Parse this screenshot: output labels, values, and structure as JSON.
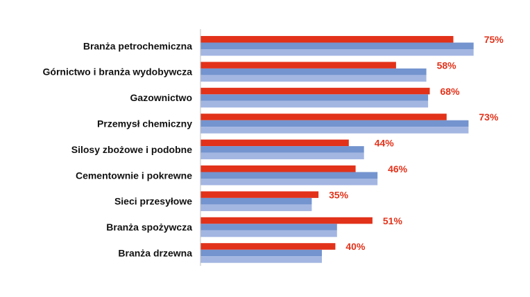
{
  "chart_data": {
    "type": "bar",
    "orientation": "horizontal",
    "categories": [
      "Branża petrochemiczna",
      "Górnictwo i branża wydobywcza",
      "Gazownictwo",
      "Przemysł chemiczny",
      "Silosy zbożowe i podobne",
      "Cementownie i pokrewne",
      "Sieci przesyłowe",
      "Branża spożywcza",
      "Branża drzewna"
    ],
    "series": [
      {
        "values": [
          75,
          58,
          68,
          73,
          44,
          46,
          35,
          51,
          40
        ],
        "color": "#e2321a"
      },
      {
        "values": [
          81,
          67,
          67.5,
          79.5,
          48.5,
          52.5,
          33,
          40.5,
          36
        ],
        "color": "#7494cf"
      },
      {
        "values": [
          81,
          67,
          67.5,
          79.5,
          48.5,
          52.5,
          33,
          40.5,
          36
        ],
        "color": "#a3b6e2"
      }
    ],
    "data_labels": [
      "75%",
      "58%",
      "68%",
      "73%",
      "44%",
      "46%",
      "35%",
      "51%",
      "40%"
    ],
    "data_label_color": "#e2321a",
    "title": "",
    "xlabel": "",
    "ylabel": "",
    "xlim": [
      0,
      100
    ],
    "axis_color": "#bfbfbf",
    "grid": false,
    "legend": "none"
  }
}
